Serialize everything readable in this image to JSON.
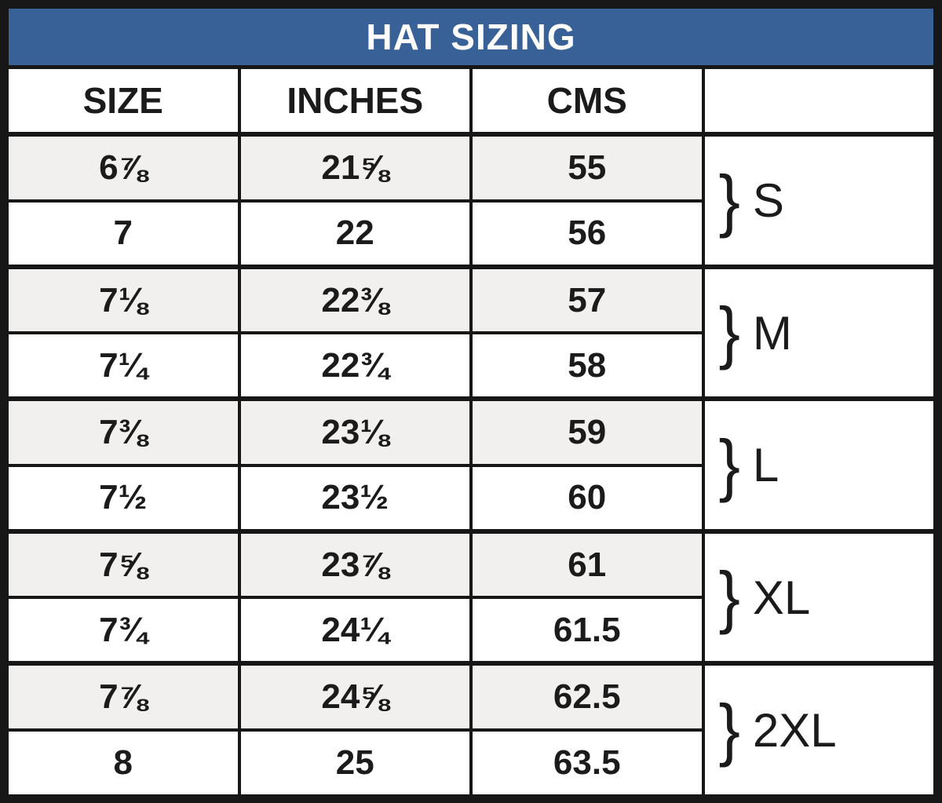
{
  "brace": "}",
  "colors": {
    "title_bg": "#386197",
    "title_text": "#ffffff",
    "row_alt_bg": "#f1f0ef",
    "row_bg": "#ffffff",
    "border": "#171717",
    "cell_text": "#1b1b1b"
  },
  "chart_data": {
    "type": "table",
    "title": "HAT SIZING",
    "columns": [
      "SIZE",
      "INCHES",
      "CMS",
      ""
    ],
    "rows": [
      [
        "6⅞",
        "21⅝",
        "55"
      ],
      [
        "7",
        "22",
        "56"
      ],
      [
        "7⅛",
        "22⅜",
        "57"
      ],
      [
        "7¼",
        "22¾",
        "58"
      ],
      [
        "7⅜",
        "23⅛",
        "59"
      ],
      [
        "7½",
        "23½",
        "60"
      ],
      [
        "7⅝",
        "23⅞",
        "61"
      ],
      [
        "7¾",
        "24¼",
        "61.5"
      ],
      [
        "7⅞",
        "24⅝",
        "62.5"
      ],
      [
        "8",
        "25",
        "63.5"
      ]
    ],
    "row_groups": [
      {
        "label": "S",
        "rows": [
          0,
          1
        ]
      },
      {
        "label": "M",
        "rows": [
          2,
          3
        ]
      },
      {
        "label": "L",
        "rows": [
          4,
          5
        ]
      },
      {
        "label": "XL",
        "rows": [
          6,
          7
        ]
      },
      {
        "label": "2XL",
        "rows": [
          8,
          9
        ]
      }
    ],
    "layout": {
      "row_striping": "alternating gray/white per row",
      "group_column": "right column, brace + label, merged across 2 rows"
    }
  }
}
